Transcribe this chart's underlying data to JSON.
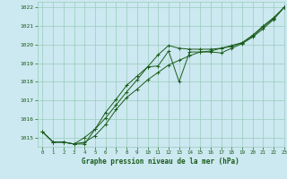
{
  "title": "Graphe pression niveau de la mer (hPa)",
  "bg_color": "#cce8f0",
  "grid_color": "#99ccbb",
  "line_color": "#1a5c1a",
  "xlim": [
    -0.5,
    23
  ],
  "ylim": [
    1014.5,
    1022.3
  ],
  "yticks": [
    1015,
    1016,
    1017,
    1018,
    1019,
    1020,
    1021,
    1022
  ],
  "xticks": [
    0,
    1,
    2,
    3,
    4,
    5,
    6,
    7,
    8,
    9,
    10,
    11,
    12,
    13,
    14,
    15,
    16,
    17,
    18,
    19,
    20,
    21,
    22,
    23
  ],
  "series1_x": [
    0,
    1,
    2,
    3,
    4,
    5,
    6,
    7,
    8,
    9,
    10,
    11,
    12,
    13,
    14,
    15,
    16,
    17,
    18,
    19,
    20,
    21,
    22,
    23
  ],
  "series1_y": [
    1015.3,
    1014.75,
    1014.75,
    1014.65,
    1014.65,
    1015.45,
    1016.35,
    1017.05,
    1017.8,
    1018.3,
    1018.8,
    1018.85,
    1019.65,
    1018.0,
    1019.6,
    1019.6,
    1019.6,
    1019.55,
    1019.8,
    1020.05,
    1020.4,
    1020.85,
    1021.35,
    1022.0
  ],
  "series2_x": [
    0,
    1,
    2,
    3,
    4,
    5,
    6,
    7,
    8,
    9,
    10,
    11,
    12,
    13,
    14,
    15,
    16,
    17,
    18,
    19,
    20,
    21,
    22,
    23
  ],
  "series2_y": [
    1015.3,
    1014.75,
    1014.75,
    1014.65,
    1014.75,
    1015.1,
    1015.7,
    1016.5,
    1017.15,
    1017.6,
    1018.1,
    1018.5,
    1018.9,
    1019.15,
    1019.4,
    1019.6,
    1019.65,
    1019.8,
    1019.95,
    1020.1,
    1020.45,
    1020.95,
    1021.4,
    1022.0
  ],
  "series3_x": [
    0,
    1,
    2,
    3,
    4,
    5,
    6,
    7,
    8,
    9,
    10,
    11,
    12,
    13,
    14,
    15,
    16,
    17,
    18,
    19,
    20,
    21,
    22,
    23
  ],
  "series3_y": [
    1015.3,
    1014.75,
    1014.75,
    1014.65,
    1015.0,
    1015.45,
    1016.05,
    1016.75,
    1017.45,
    1018.1,
    1018.8,
    1019.45,
    1019.95,
    1019.8,
    1019.75,
    1019.75,
    1019.75,
    1019.8,
    1019.9,
    1020.1,
    1020.5,
    1021.0,
    1021.45,
    1022.0
  ]
}
